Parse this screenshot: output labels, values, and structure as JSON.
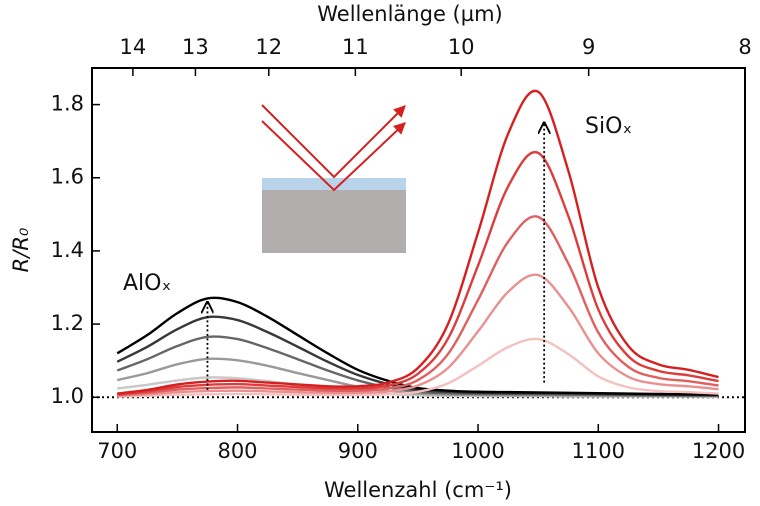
{
  "chart_data": {
    "type": "line",
    "top_axis_label": "Wellenlänge (µm)",
    "x_label": "Wellenzahl (cm⁻¹)",
    "y_label": "R/R₀",
    "annotations": [
      {
        "text": "AlOₓ",
        "color": "#000000"
      },
      {
        "text": "SiOₓ",
        "color": "#d62020"
      }
    ],
    "xlim": [
      679,
      1222
    ],
    "ylim": [
      0.905,
      1.9
    ],
    "xticks": [
      700,
      800,
      900,
      1000,
      1100,
      1200
    ],
    "yticks": [
      {
        "value": 1,
        "label": "1.0"
      },
      1.2,
      1.4,
      1.6,
      1.8
    ],
    "x2ticks": [
      {
        "value": 713,
        "label": "14"
      },
      {
        "value": 765,
        "label": "13"
      },
      {
        "value": 826,
        "label": "12"
      },
      {
        "value": 898,
        "label": "11"
      },
      {
        "value": 986,
        "label": "10"
      },
      {
        "value": 1092,
        "label": "9"
      },
      {
        "value": 1222,
        "label": "8"
      }
    ],
    "reference_line": 1,
    "arrows": [
      {
        "x": 775,
        "y": [
          1.02,
          1.26
        ]
      },
      {
        "x": 1055,
        "y": [
          1.04,
          1.75
        ]
      }
    ],
    "x": [
      700,
      725,
      750,
      775,
      800,
      825,
      850,
      875,
      900,
      925,
      950,
      975,
      1000,
      1025,
      1050,
      1075,
      1100,
      1125,
      1150,
      1175,
      1200
    ],
    "series": [
      {
        "color": "#c8c8c8",
        "values": [
          1.024,
          1.034,
          1.046,
          1.054,
          1.052,
          1.044,
          1.034,
          1.024,
          1.015,
          1.009,
          1.005,
          1.004,
          1.003,
          1.003,
          1.003,
          1.002,
          1.002,
          1.002,
          1.002,
          1.002,
          1.001
        ]
      },
      {
        "color": "#999999",
        "values": [
          1.047,
          1.066,
          1.09,
          1.105,
          1.101,
          1.086,
          1.066,
          1.047,
          1.029,
          1.018,
          1.01,
          1.007,
          1.006,
          1.005,
          1.005,
          1.005,
          1.004,
          1.004,
          1.004,
          1.003,
          1.003
        ]
      },
      {
        "color": "#666666",
        "values": [
          1.073,
          1.104,
          1.14,
          1.165,
          1.159,
          1.134,
          1.104,
          1.073,
          1.046,
          1.027,
          1.015,
          1.011,
          1.009,
          1.009,
          1.008,
          1.007,
          1.007,
          1.006,
          1.005,
          1.005,
          1.004
        ]
      },
      {
        "color": "#383838",
        "values": [
          1.097,
          1.138,
          1.186,
          1.219,
          1.211,
          1.178,
          1.138,
          1.097,
          1.061,
          1.036,
          1.02,
          1.015,
          1.012,
          1.011,
          1.011,
          1.01,
          1.009,
          1.008,
          1.007,
          1.006,
          1.006
        ]
      },
      {
        "color": "#000000",
        "values": [
          1.12,
          1.17,
          1.23,
          1.27,
          1.26,
          1.22,
          1.17,
          1.12,
          1.075,
          1.045,
          1.025,
          1.018,
          1.015,
          1.014,
          1.013,
          1.012,
          1.011,
          1.01,
          1.009,
          1.008,
          1.007
        ]
      },
      {
        "color": "#f5c0c0",
        "values": [
          1.002,
          1.004,
          1.007,
          1.008,
          1.009,
          1.008,
          1.007,
          1.006,
          1.006,
          1.008,
          1.015,
          1.038,
          1.086,
          1.137,
          1.159,
          1.118,
          1.057,
          1.027,
          1.017,
          1.014,
          1.01
        ]
      },
      {
        "color": "#ea9090",
        "values": [
          1.004,
          1.008,
          1.014,
          1.017,
          1.018,
          1.016,
          1.014,
          1.012,
          1.012,
          1.016,
          1.032,
          1.08,
          1.18,
          1.288,
          1.334,
          1.248,
          1.12,
          1.056,
          1.036,
          1.03,
          1.022
        ]
      },
      {
        "color": "#e06060",
        "values": [
          1.006,
          1.012,
          1.021,
          1.025,
          1.027,
          1.024,
          1.021,
          1.018,
          1.018,
          1.024,
          1.047,
          1.118,
          1.266,
          1.425,
          1.493,
          1.366,
          1.177,
          1.083,
          1.053,
          1.044,
          1.032
        ]
      },
      {
        "color": "#dc3c3c",
        "values": [
          1.008,
          1.016,
          1.028,
          1.034,
          1.036,
          1.032,
          1.028,
          1.024,
          1.024,
          1.032,
          1.064,
          1.16,
          1.36,
          1.576,
          1.668,
          1.496,
          1.24,
          1.112,
          1.072,
          1.06,
          1.044
        ]
      },
      {
        "color": "#d62020",
        "values": [
          1.01,
          1.02,
          1.035,
          1.043,
          1.045,
          1.04,
          1.035,
          1.03,
          1.03,
          1.04,
          1.08,
          1.2,
          1.45,
          1.72,
          1.835,
          1.62,
          1.3,
          1.14,
          1.09,
          1.075,
          1.055
        ]
      }
    ]
  }
}
